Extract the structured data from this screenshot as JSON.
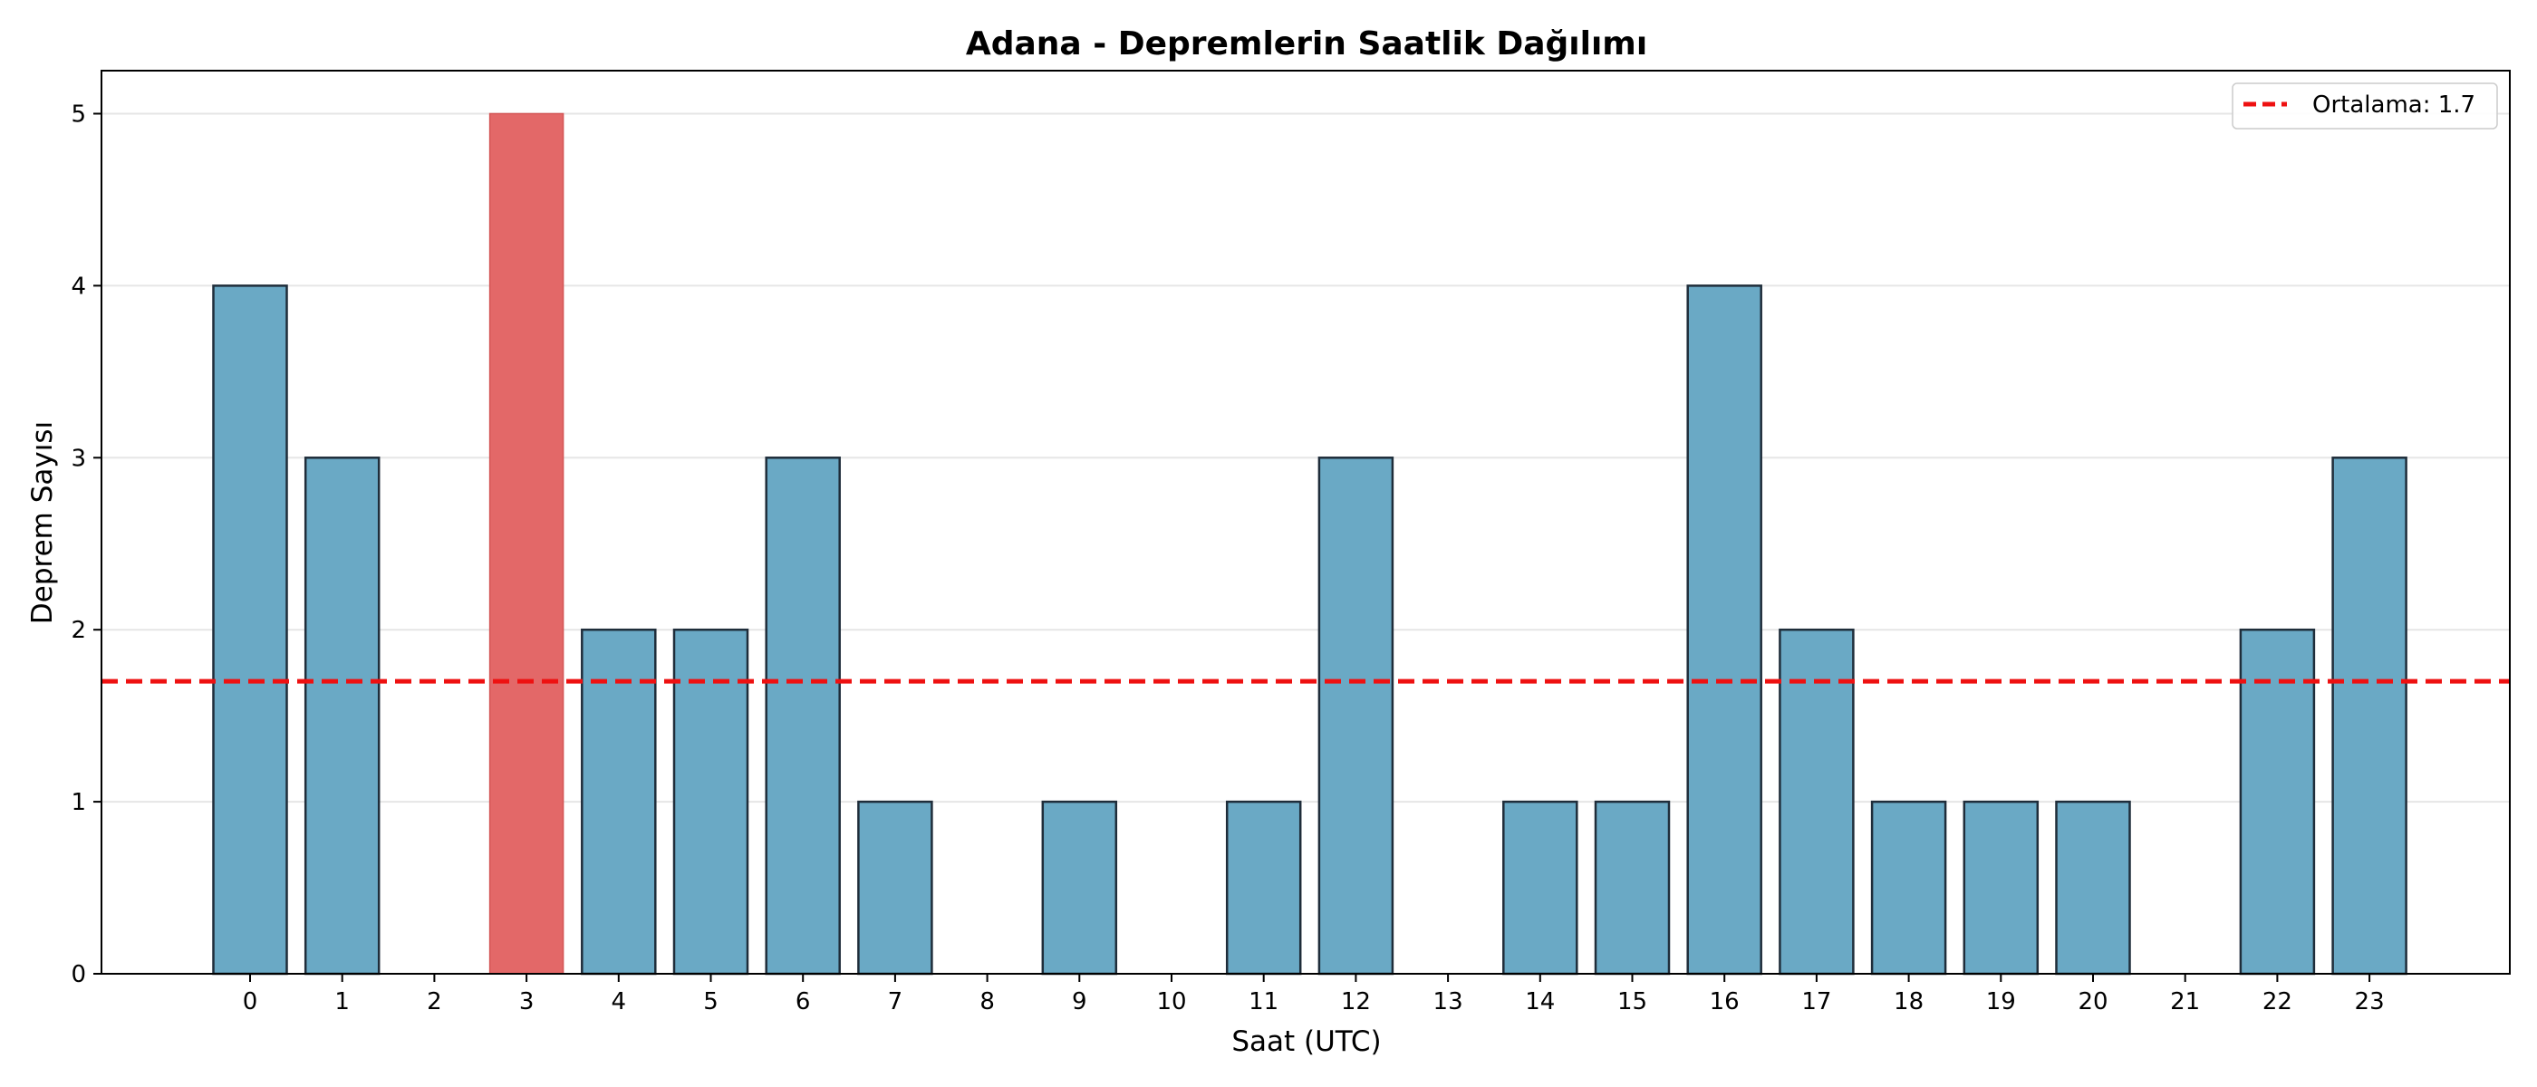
{
  "chart_data": {
    "type": "bar",
    "title": "Adana - Depremlerin Saatlik Dağılımı",
    "xlabel": "Saat (UTC)",
    "ylabel": "Deprem Sayısı",
    "categories": [
      "0",
      "1",
      "2",
      "3",
      "4",
      "5",
      "6",
      "7",
      "8",
      "9",
      "10",
      "11",
      "12",
      "13",
      "14",
      "15",
      "16",
      "17",
      "18",
      "19",
      "20",
      "21",
      "22",
      "23"
    ],
    "values": [
      4,
      3,
      0,
      5,
      2,
      2,
      3,
      1,
      0,
      1,
      0,
      1,
      3,
      0,
      1,
      1,
      4,
      2,
      1,
      1,
      1,
      0,
      2,
      3
    ],
    "highlight_index": 3,
    "ylim": [
      0,
      5.25
    ],
    "yticks": [
      0,
      1,
      2,
      3,
      4,
      5
    ],
    "grid": "horizontal",
    "mean_line": {
      "value": 1.7,
      "label": "Ortalama: 1.7",
      "style": "dashed"
    },
    "legend_position": "top-right",
    "colors": {
      "bar": "#6aa9c5",
      "highlight": "#e36868",
      "edge": "#1f2d3a",
      "mean_line": "#ee1111",
      "grid": "#e6e6e6"
    }
  }
}
